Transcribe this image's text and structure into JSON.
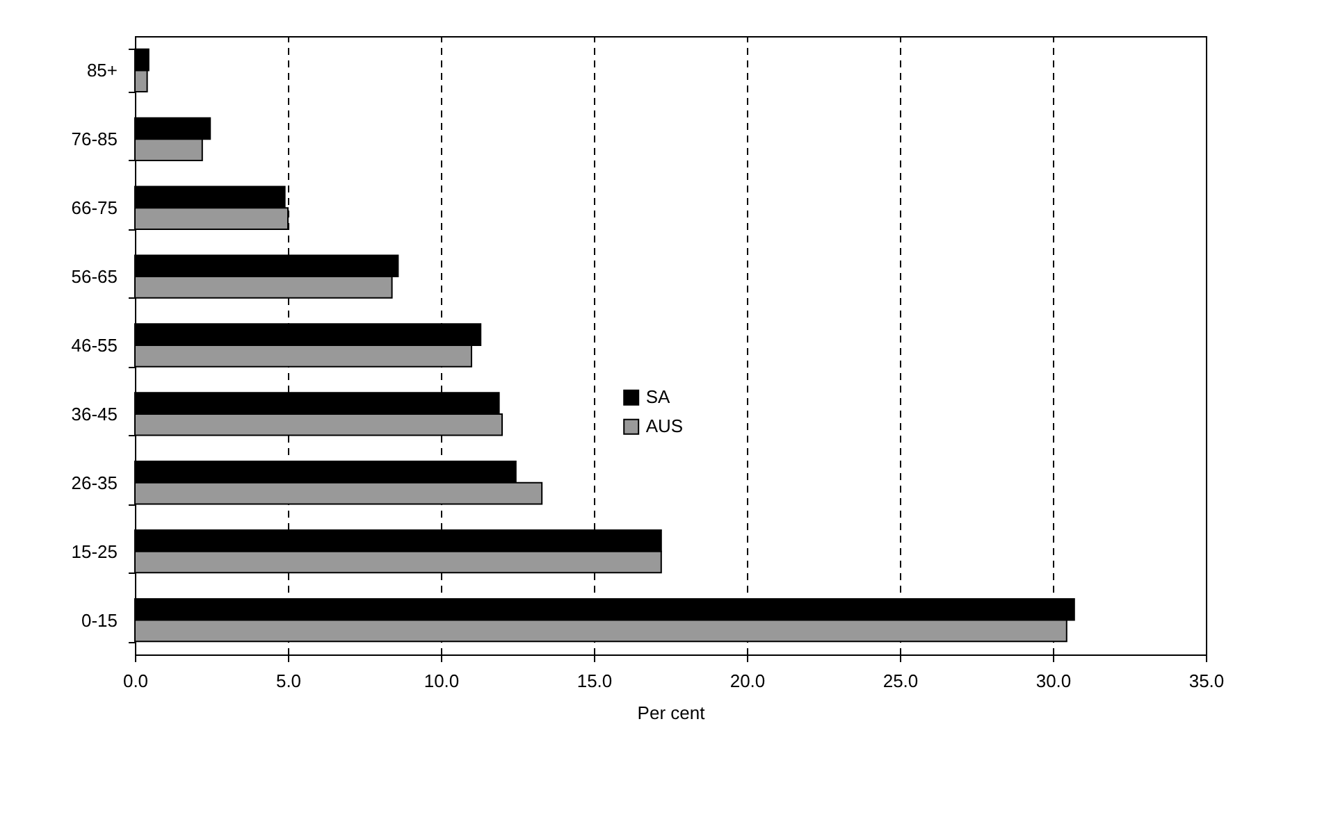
{
  "chart_data": {
    "type": "bar",
    "orientation": "horizontal",
    "xlabel": "Per cent",
    "categories": [
      "85+",
      "76-85",
      "66-75",
      "56-65",
      "46-55",
      "36-45",
      "26-35",
      "15-25",
      "0-15"
    ],
    "series": [
      {
        "name": "SA",
        "color": "#000000",
        "values": [
          0.45,
          2.46,
          4.9,
          8.6,
          11.3,
          11.9,
          12.45,
          17.2,
          30.7
        ]
      },
      {
        "name": "AUS",
        "color": "#999999",
        "values": [
          0.4,
          2.2,
          5.0,
          8.4,
          11.0,
          12.0,
          13.3,
          17.2,
          30.45
        ]
      }
    ],
    "xlim": [
      0,
      35
    ],
    "xticks": [
      {
        "value": 0,
        "label": "0.0"
      },
      {
        "value": 5,
        "label": "5.0"
      },
      {
        "value": 10,
        "label": "10.0"
      },
      {
        "value": 15,
        "label": "15.0"
      },
      {
        "value": 20,
        "label": "20.0"
      },
      {
        "value": 25,
        "label": "25.0"
      },
      {
        "value": 30,
        "label": "30.0"
      },
      {
        "value": 35,
        "label": "35.0"
      }
    ],
    "grid": "x",
    "line_style": "dashed",
    "legend": "center"
  }
}
